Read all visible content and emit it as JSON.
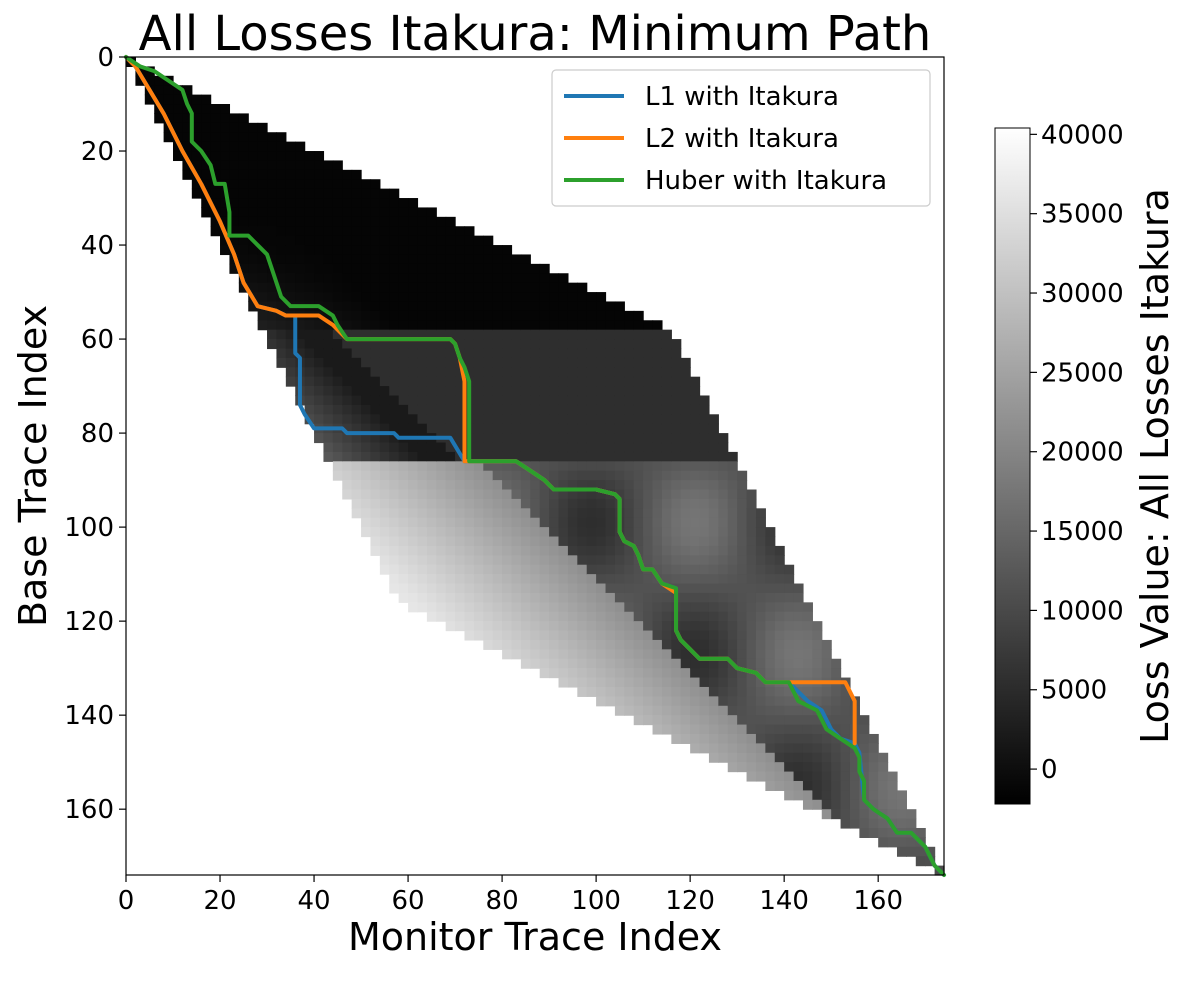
{
  "chart_data": {
    "type": "heatmap",
    "title": "All Losses Itakura: Minimum Path",
    "xlabel": "Monitor Trace Index",
    "ylabel": "Base Trace Index",
    "x_ticks": [
      0,
      20,
      40,
      60,
      80,
      100,
      120,
      140,
      160
    ],
    "y_ticks": [
      0,
      20,
      40,
      60,
      80,
      100,
      120,
      140,
      160
    ],
    "xlim": [
      0,
      174
    ],
    "ylim": [
      0,
      174
    ],
    "y_inverted": true,
    "colormap": "gray",
    "colorbar": {
      "label": "Loss Value: All Losses Itakura",
      "ticks": [
        0,
        5000,
        10000,
        15000,
        20000,
        25000,
        30000,
        35000,
        40000
      ],
      "range": [
        -2200,
        40400
      ]
    },
    "legend_position": "top-right",
    "series": [
      {
        "name": "L1 with Itakura",
        "color": "#1f77b4",
        "points": [
          [
            0,
            0
          ],
          [
            2,
            2
          ],
          [
            5,
            7
          ],
          [
            8,
            12
          ],
          [
            12,
            20
          ],
          [
            16,
            27
          ],
          [
            20,
            35
          ],
          [
            23,
            42
          ],
          [
            25,
            48
          ],
          [
            28,
            53
          ],
          [
            32,
            54
          ],
          [
            34,
            55
          ],
          [
            36,
            55
          ],
          [
            36,
            63
          ],
          [
            37,
            64
          ],
          [
            37,
            74
          ],
          [
            38,
            76
          ],
          [
            40,
            79
          ],
          [
            46,
            79
          ],
          [
            47,
            80
          ],
          [
            57,
            80
          ],
          [
            58,
            81
          ],
          [
            69,
            81
          ],
          [
            72,
            86
          ],
          [
            83,
            86
          ],
          [
            86,
            88
          ],
          [
            89,
            90
          ],
          [
            91,
            92
          ],
          [
            100,
            92
          ],
          [
            104,
            93
          ],
          [
            105,
            94
          ],
          [
            105,
            101
          ],
          [
            106,
            103
          ],
          [
            108,
            104
          ],
          [
            109,
            106
          ],
          [
            110,
            109
          ],
          [
            112,
            109
          ],
          [
            114,
            112
          ],
          [
            117,
            113
          ],
          [
            117,
            122
          ],
          [
            118,
            124
          ],
          [
            120,
            126
          ],
          [
            122,
            128
          ],
          [
            128,
            128
          ],
          [
            130,
            130
          ],
          [
            134,
            131
          ],
          [
            136,
            133
          ],
          [
            141,
            133
          ],
          [
            145,
            137
          ],
          [
            148,
            139
          ],
          [
            150,
            143
          ],
          [
            152,
            145
          ],
          [
            155,
            146
          ],
          [
            156,
            148
          ],
          [
            157,
            158
          ],
          [
            159,
            160
          ],
          [
            162,
            162
          ],
          [
            164,
            165
          ],
          [
            167,
            165
          ],
          [
            170,
            168
          ],
          [
            172,
            172
          ],
          [
            174,
            174
          ]
        ]
      },
      {
        "name": "L2 with Itakura",
        "color": "#ff7f0e",
        "points": [
          [
            0,
            0
          ],
          [
            2,
            2
          ],
          [
            5,
            7
          ],
          [
            8,
            12
          ],
          [
            12,
            20
          ],
          [
            16,
            27
          ],
          [
            20,
            35
          ],
          [
            23,
            42
          ],
          [
            25,
            48
          ],
          [
            28,
            53
          ],
          [
            32,
            54
          ],
          [
            34,
            55
          ],
          [
            41,
            55
          ],
          [
            44,
            57
          ],
          [
            47,
            60
          ],
          [
            69,
            60
          ],
          [
            70,
            61
          ],
          [
            71,
            64
          ],
          [
            72,
            69
          ],
          [
            72,
            86
          ],
          [
            83,
            86
          ],
          [
            86,
            88
          ],
          [
            89,
            90
          ],
          [
            91,
            92
          ],
          [
            100,
            92
          ],
          [
            104,
            93
          ],
          [
            105,
            94
          ],
          [
            105,
            101
          ],
          [
            106,
            103
          ],
          [
            108,
            104
          ],
          [
            109,
            106
          ],
          [
            110,
            109
          ],
          [
            112,
            109
          ],
          [
            114,
            112
          ],
          [
            117,
            114
          ],
          [
            117,
            122
          ],
          [
            118,
            124
          ],
          [
            120,
            126
          ],
          [
            122,
            128
          ],
          [
            128,
            128
          ],
          [
            130,
            130
          ],
          [
            134,
            131
          ],
          [
            136,
            133
          ],
          [
            153,
            133
          ],
          [
            154,
            135
          ],
          [
            155,
            137
          ],
          [
            155,
            146
          ]
        ]
      },
      {
        "name": "Huber with Itakura",
        "color": "#2ca02c",
        "points": [
          [
            0,
            0
          ],
          [
            3,
            2
          ],
          [
            6,
            3
          ],
          [
            9,
            5
          ],
          [
            12,
            7
          ],
          [
            13,
            10
          ],
          [
            14,
            12
          ],
          [
            14,
            18
          ],
          [
            16,
            20
          ],
          [
            18,
            23
          ],
          [
            19,
            27
          ],
          [
            21,
            27
          ],
          [
            22,
            33
          ],
          [
            22,
            38
          ],
          [
            26,
            38
          ],
          [
            28,
            40
          ],
          [
            30,
            42
          ],
          [
            31,
            45
          ],
          [
            32,
            48
          ],
          [
            33,
            51
          ],
          [
            35,
            53
          ],
          [
            41,
            53
          ],
          [
            44,
            55
          ],
          [
            45,
            57
          ],
          [
            47,
            60
          ],
          [
            69,
            60
          ],
          [
            70,
            61
          ],
          [
            71,
            64
          ],
          [
            72,
            66
          ],
          [
            73,
            69
          ],
          [
            73,
            86
          ],
          [
            83,
            86
          ],
          [
            86,
            88
          ],
          [
            89,
            90
          ],
          [
            91,
            92
          ],
          [
            100,
            92
          ],
          [
            104,
            93
          ],
          [
            105,
            94
          ],
          [
            105,
            101
          ],
          [
            106,
            103
          ],
          [
            108,
            104
          ],
          [
            109,
            106
          ],
          [
            110,
            109
          ],
          [
            112,
            109
          ],
          [
            114,
            112
          ],
          [
            117,
            113
          ],
          [
            117,
            122
          ],
          [
            118,
            124
          ],
          [
            120,
            126
          ],
          [
            122,
            128
          ],
          [
            128,
            128
          ],
          [
            130,
            130
          ],
          [
            134,
            131
          ],
          [
            136,
            133
          ],
          [
            141,
            133
          ],
          [
            143,
            137
          ],
          [
            147,
            139
          ],
          [
            149,
            143
          ],
          [
            152,
            145
          ],
          [
            155,
            147
          ],
          [
            156,
            149
          ],
          [
            156,
            152
          ],
          [
            157,
            154
          ],
          [
            157,
            158
          ],
          [
            159,
            160
          ],
          [
            162,
            162
          ],
          [
            164,
            165
          ],
          [
            167,
            165
          ],
          [
            170,
            168
          ],
          [
            172,
            172
          ],
          [
            174,
            174
          ]
        ]
      }
    ]
  }
}
